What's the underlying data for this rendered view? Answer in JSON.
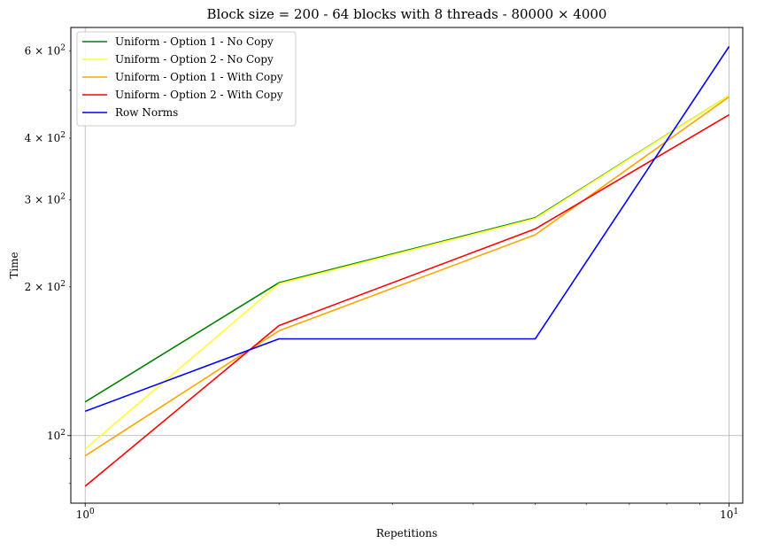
{
  "chart_data": {
    "type": "line",
    "title": "Block size = 200 - 64 blocks with 8 threads - 80000 × 4000",
    "xlabel": "Repetitions",
    "ylabel": "Time",
    "xscale": "log",
    "yscale": "log",
    "xlim": [
      0.95,
      10.5
    ],
    "ylim": [
      73,
      670
    ],
    "grid": "major",
    "legend_position": "top-left",
    "x": [
      1,
      2,
      5,
      10
    ],
    "x_ticks": [
      {
        "value": 1,
        "base": "10",
        "exp": "0"
      },
      {
        "value": 10,
        "base": "10",
        "exp": "1"
      }
    ],
    "y_ticks": [
      {
        "value": 100,
        "mant": "",
        "base": "10",
        "exp": "2"
      },
      {
        "value": 200,
        "mant": "2 × ",
        "base": "10",
        "exp": "2"
      },
      {
        "value": 300,
        "mant": "3 × ",
        "base": "10",
        "exp": "2"
      },
      {
        "value": 400,
        "mant": "4 × ",
        "base": "10",
        "exp": "2"
      },
      {
        "value": 600,
        "mant": "6 × ",
        "base": "10",
        "exp": "2"
      }
    ],
    "series": [
      {
        "name": "Uniform - Option 1 - No Copy",
        "color": "#008000",
        "values": [
          117,
          204,
          276,
          488
        ]
      },
      {
        "name": "Uniform - Option 2 - No Copy",
        "color": "#ffff33",
        "values": [
          94,
          203,
          275,
          488
        ]
      },
      {
        "name": "Uniform - Option 1 - With Copy",
        "color": "#ffa500",
        "values": [
          91,
          163,
          255,
          485
        ]
      },
      {
        "name": "Uniform - Option 2 - With Copy",
        "color": "#ff0000",
        "values": [
          79,
          167,
          262,
          446
        ]
      },
      {
        "name": "Row Norms",
        "color": "#0000ff",
        "values": [
          112,
          157,
          157,
          613
        ]
      }
    ]
  }
}
